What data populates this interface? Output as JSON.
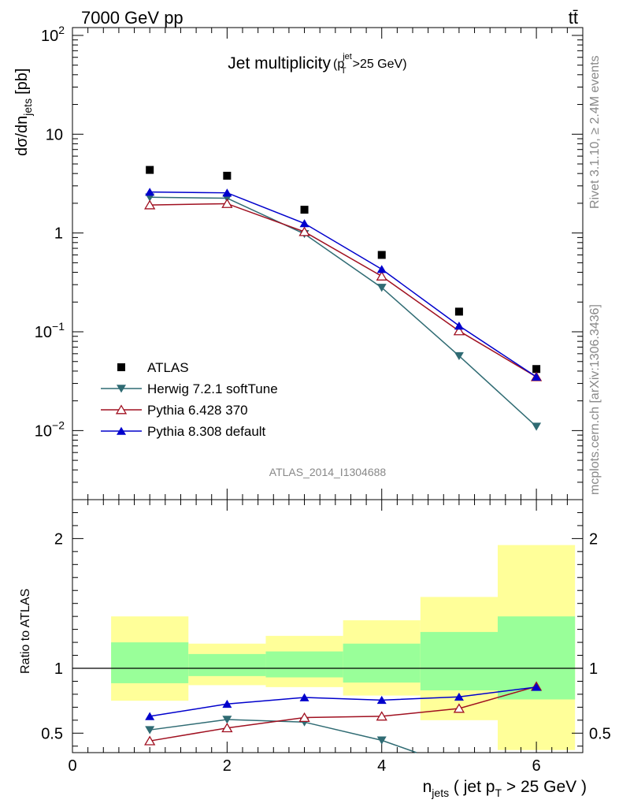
{
  "header": {
    "energy_label": "7000 GeV pp",
    "process_label": "tt̄",
    "rivet_label": "Rivet 3.1.10, ≥ 2.4M events",
    "mcplots_label": "mcplots.cern.ch [arXiv:1306.3436]",
    "analysis_id": "ATLAS_2014_I1304688"
  },
  "chart_data": [
    {
      "type": "scatter",
      "title_main": "Jet multiplicity",
      "title_sub_p": "(p",
      "title_sub_sup": "jet",
      "title_sub_sub": "T",
      "title_sub_rest": ">25 GeV)",
      "ylabel_main": "dσ/dn",
      "ylabel_sub": "jets",
      "ylabel_unit": "[pb]",
      "yscale": "log",
      "ylim": [
        0.002,
        120
      ],
      "xlim": [
        0,
        6.6
      ],
      "y_ticks": [
        {
          "value": 0.01,
          "base": "10",
          "exp": "−2"
        },
        {
          "value": 0.1,
          "base": "10",
          "exp": "−1"
        },
        {
          "value": 1,
          "base": "1",
          "exp": ""
        },
        {
          "value": 10,
          "base": "10",
          "exp": ""
        },
        {
          "value": 100,
          "base": "10",
          "exp": "2"
        }
      ],
      "legend_position": "bottom-left",
      "series": [
        {
          "name": "ATLAS",
          "key": "atlas",
          "marker": "square",
          "color": "#000000",
          "x": [
            1,
            2,
            3,
            4,
            5,
            6
          ],
          "y": [
            4.35,
            3.8,
            1.72,
            0.6,
            0.16,
            0.042
          ]
        },
        {
          "name": "Herwig 7.2.1 softTune",
          "key": "herwig",
          "marker": "triangle-down",
          "color": "#2f6b73",
          "x": [
            1,
            2,
            3,
            4,
            5,
            6
          ],
          "y": [
            2.3,
            2.25,
            0.98,
            0.28,
            0.057,
            0.011
          ]
        },
        {
          "name": "Pythia 6.428 370",
          "key": "py6",
          "marker": "triangle-up-open",
          "color": "#a01020",
          "x": [
            1,
            2,
            3,
            4,
            5,
            6
          ],
          "y": [
            1.92,
            1.98,
            1.03,
            0.365,
            0.102,
            0.035
          ]
        },
        {
          "name": "Pythia 8.308 default",
          "key": "py8",
          "marker": "triangle-up",
          "color": "#0000cc",
          "x": [
            1,
            2,
            3,
            4,
            5,
            6
          ],
          "y": [
            2.6,
            2.55,
            1.25,
            0.43,
            0.115,
            0.035
          ]
        }
      ]
    },
    {
      "type": "scatter",
      "ylabel": "Ratio to ATLAS",
      "xlabel_n": "n",
      "xlabel_sub": "jets",
      "xlabel_mid": " ( jet p",
      "xlabel_sub2": "T",
      "xlabel_rest": " > 25 GeV )",
      "ylim": [
        0.35,
        2.3
      ],
      "xlim": [
        0,
        6.6
      ],
      "x_ticks": [
        "0",
        "2",
        "4",
        "6"
      ],
      "y_ticks": [
        "0.5",
        "1",
        "2"
      ],
      "bands": [
        {
          "x0": 0.5,
          "x1": 1.5,
          "inner": [
            0.885,
            1.2
          ],
          "outer": [
            0.75,
            1.4
          ]
        },
        {
          "x0": 1.5,
          "x1": 2.5,
          "inner": [
            0.94,
            1.11
          ],
          "outer": [
            0.87,
            1.19
          ]
        },
        {
          "x0": 2.5,
          "x1": 3.5,
          "inner": [
            0.93,
            1.13
          ],
          "outer": [
            0.855,
            1.25
          ]
        },
        {
          "x0": 3.5,
          "x1": 4.5,
          "inner": [
            0.89,
            1.19
          ],
          "outer": [
            0.79,
            1.37
          ]
        },
        {
          "x0": 4.5,
          "x1": 5.5,
          "inner": [
            0.83,
            1.28
          ],
          "outer": [
            0.6,
            1.55
          ]
        },
        {
          "x0": 5.5,
          "x1": 6.5,
          "inner": [
            0.76,
            1.4
          ],
          "outer": [
            0.37,
            1.95
          ]
        }
      ],
      "series": [
        {
          "name": "Herwig 7.2.1 softTune",
          "key": "herwig",
          "x": [
            1,
            2,
            3,
            4,
            4.45
          ],
          "y": [
            0.525,
            0.605,
            0.585,
            0.445,
            0.35
          ],
          "markers": 4
        },
        {
          "name": "Pythia 6.428 370",
          "key": "py6",
          "x": [
            1,
            2,
            3,
            4,
            5,
            6
          ],
          "y": [
            0.44,
            0.54,
            0.62,
            0.63,
            0.69,
            0.86
          ],
          "markers": 6
        },
        {
          "name": "Pythia 8.308 default",
          "key": "py8",
          "x": [
            1,
            2,
            3,
            4,
            5,
            6
          ],
          "y": [
            0.63,
            0.725,
            0.775,
            0.755,
            0.78,
            0.855
          ],
          "markers": 6
        }
      ]
    }
  ]
}
